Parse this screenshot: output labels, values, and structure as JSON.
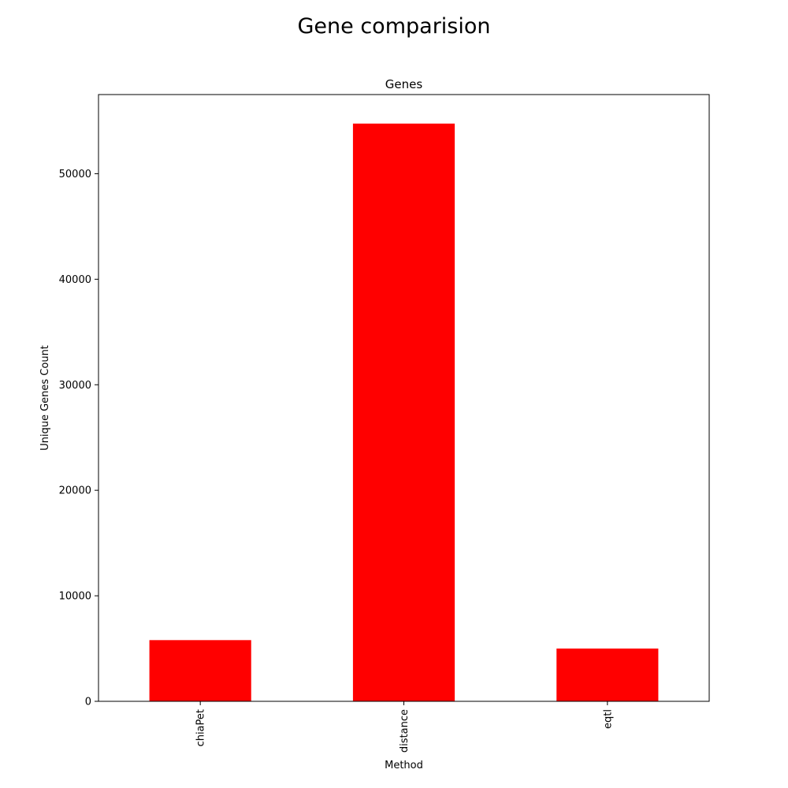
{
  "figure": {
    "suptitle": "Gene comparision"
  },
  "chart_data": {
    "type": "bar",
    "title": "Genes",
    "xlabel": "Method",
    "ylabel": "Unique Genes Count",
    "categories": [
      "chiaPet",
      "distance",
      "eqtl"
    ],
    "values": [
      5800,
      54750,
      5000
    ],
    "ylim": [
      0,
      57500
    ],
    "yticks": [
      0,
      10000,
      20000,
      30000,
      40000,
      50000
    ],
    "ytick_labels": [
      "0",
      "10000",
      "20000",
      "30000",
      "40000",
      "50000"
    ],
    "bar_color": "#ff0000",
    "grid": false,
    "legend": "none"
  }
}
